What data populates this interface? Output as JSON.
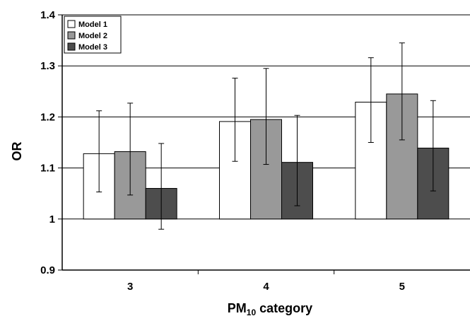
{
  "chart_data": {
    "type": "bar",
    "title": "",
    "xlabel_main": "PM",
    "xlabel_sub": "10",
    "xlabel_rest": " category",
    "ylabel": "OR",
    "categories": [
      "3",
      "4",
      "5"
    ],
    "ylim": [
      0.9,
      1.4
    ],
    "yticks": [
      0.9,
      1,
      1.1,
      1.2,
      1.3,
      1.4
    ],
    "ytick_labels": [
      "0.9",
      "1",
      "1.1",
      "1.2",
      "1.3",
      "1.4"
    ],
    "bar_baseline": 1,
    "grid": true,
    "legend_position": "top-left",
    "series": [
      {
        "name": "Model 1",
        "color": "#ffffff",
        "values": [
          1.128,
          1.191,
          1.229
        ],
        "error_low": [
          1.053,
          1.113,
          1.15
        ],
        "error_high": [
          1.212,
          1.276,
          1.316
        ]
      },
      {
        "name": "Model 2",
        "color": "#999999",
        "values": [
          1.132,
          1.195,
          1.245
        ],
        "error_low": [
          1.047,
          1.107,
          1.155
        ],
        "error_high": [
          1.227,
          1.295,
          1.345
        ]
      },
      {
        "name": "Model 3",
        "color": "#4d4d4d",
        "values": [
          1.06,
          1.111,
          1.139
        ],
        "error_low": [
          0.98,
          1.026,
          1.055
        ],
        "error_high": [
          1.148,
          1.203,
          1.232
        ]
      }
    ]
  }
}
